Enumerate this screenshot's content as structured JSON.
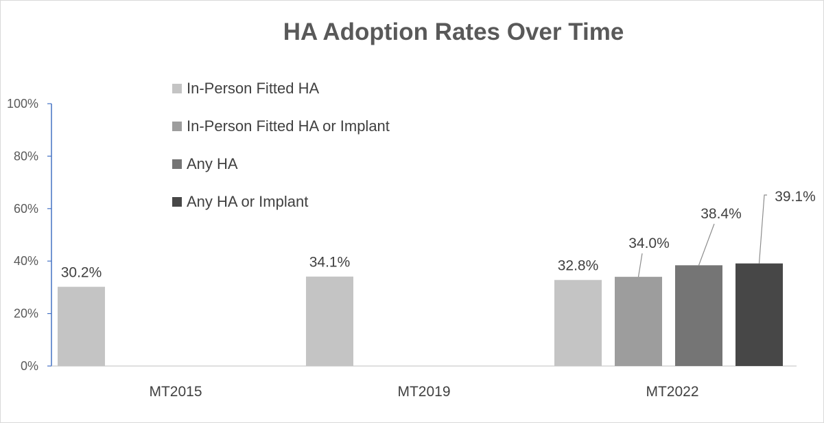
{
  "chart_data": {
    "type": "bar",
    "title": "HA Adoption Rates Over Time",
    "xlabel": "",
    "ylabel": "",
    "ylim": [
      0,
      100
    ],
    "yticks": [
      "0%",
      "20%",
      "40%",
      "60%",
      "80%",
      "100%"
    ],
    "categories": [
      "MT2015",
      "MT2019",
      "MT2022"
    ],
    "legend_position": "top-left",
    "grid": false,
    "series": [
      {
        "name": "In-Person Fitted HA",
        "color": "#c4c4c4",
        "values": [
          30.2,
          34.1,
          32.8
        ],
        "labels": [
          "30.2%",
          "34.1%",
          "32.8%"
        ]
      },
      {
        "name": "In-Person Fitted HA or Implant",
        "color": "#9d9d9d",
        "values": [
          null,
          null,
          34.0
        ],
        "labels": [
          null,
          null,
          "34.0%"
        ]
      },
      {
        "name": "Any HA",
        "color": "#757575",
        "values": [
          null,
          null,
          38.4
        ],
        "labels": [
          null,
          null,
          "38.4%"
        ]
      },
      {
        "name": "Any HA or Implant",
        "color": "#474747",
        "values": [
          null,
          null,
          39.1
        ],
        "labels": [
          null,
          null,
          "39.1%"
        ]
      }
    ]
  }
}
